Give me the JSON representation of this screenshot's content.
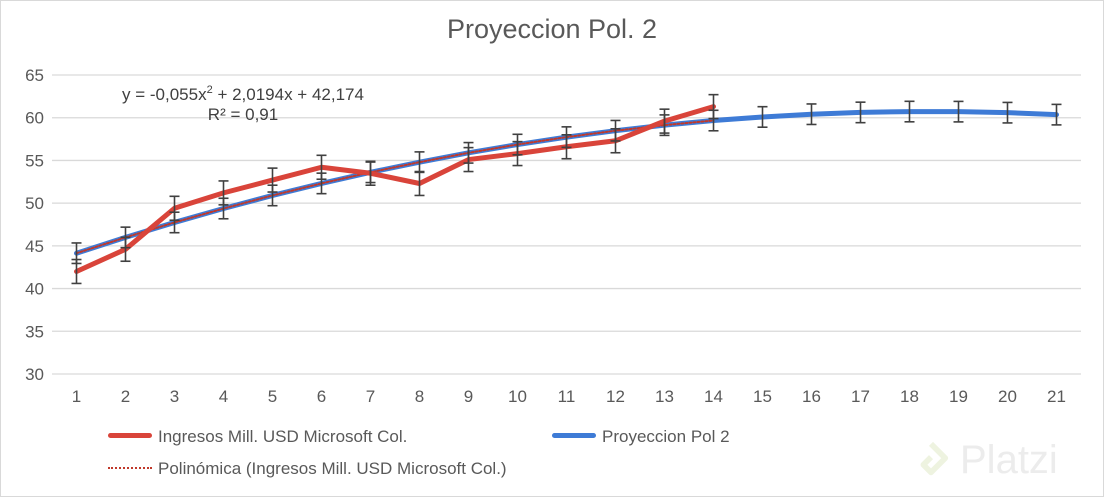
{
  "chart_data": {
    "type": "line",
    "title": "Proyeccion Pol. 2",
    "xlabel": "",
    "ylabel": "",
    "ylim": [
      30,
      65
    ],
    "yticks": [
      "30",
      "35",
      "40",
      "45",
      "50",
      "55",
      "60",
      "65"
    ],
    "categories": [
      "1",
      "2",
      "3",
      "4",
      "5",
      "6",
      "7",
      "8",
      "9",
      "10",
      "11",
      "12",
      "13",
      "14",
      "15",
      "16",
      "17",
      "18",
      "19",
      "20",
      "21"
    ],
    "grid": true,
    "legend_position": "bottom",
    "series": [
      {
        "name": "Ingresos Mill. USD Microsoft Col.",
        "color": "#d9443a",
        "x": [
          1,
          2,
          3,
          4,
          5,
          6,
          7,
          8,
          9,
          10,
          11,
          12,
          13,
          14
        ],
        "values": [
          42.0,
          44.6,
          49.4,
          51.2,
          52.7,
          54.2,
          53.5,
          52.3,
          55.1,
          55.8,
          56.6,
          57.3,
          59.6,
          61.3
        ],
        "error": 1.4
      },
      {
        "name": "Proyeccion Pol 2",
        "color": "#3e7bd6",
        "x": [
          1,
          2,
          3,
          4,
          5,
          6,
          7,
          8,
          9,
          10,
          11,
          12,
          13,
          14,
          15,
          16,
          17,
          18,
          19,
          20,
          21
        ],
        "values": [
          44.14,
          45.99,
          47.74,
          49.37,
          50.9,
          52.31,
          53.61,
          54.8,
          55.89,
          56.86,
          57.73,
          58.48,
          59.13,
          59.67,
          60.09,
          60.41,
          60.62,
          60.72,
          60.71,
          60.59,
          60.36
        ],
        "error": 1.2
      },
      {
        "name": "Polinómica (Ingresos Mill. USD Microsoft Col.)",
        "color": "#c0392b",
        "style": "dotted",
        "x": [
          1,
          2,
          3,
          4,
          5,
          6,
          7,
          8,
          9,
          10,
          11,
          12,
          13,
          14
        ],
        "values": [
          44.14,
          45.99,
          47.74,
          49.37,
          50.9,
          52.31,
          53.61,
          54.8,
          55.89,
          56.86,
          57.73,
          58.48,
          59.13,
          59.67
        ]
      }
    ],
    "annotations": {
      "equation": "y = -0,055x",
      "equation_sup": "2",
      "equation_rest": " + 2,0194x + 42,174",
      "r2": "R² = 0,91"
    }
  },
  "watermark": "Platzi"
}
